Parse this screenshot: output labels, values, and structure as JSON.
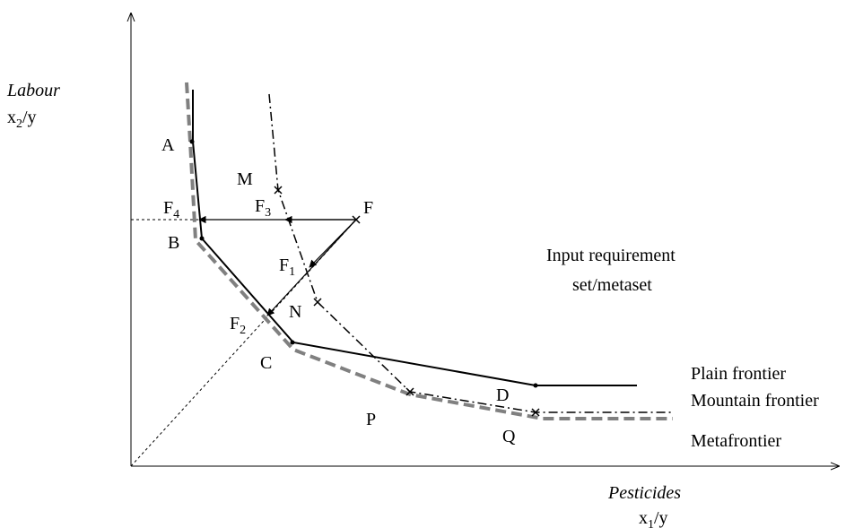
{
  "axes": {
    "y_label": "Labour",
    "y_unit": {
      "base": "x",
      "sub": "2",
      "rest": "/y"
    },
    "x_label": "Pesticides",
    "x_unit": {
      "base": "x",
      "sub": "1",
      "rest": "/y"
    }
  },
  "points": {
    "A": "A",
    "B": "B",
    "C": "C",
    "D": "D",
    "M": "M",
    "N": "N",
    "P": "P",
    "Q": "Q",
    "F": "F",
    "F1": {
      "base": "F",
      "sub": "1"
    },
    "F2": {
      "base": "F",
      "sub": "2"
    },
    "F3": {
      "base": "F",
      "sub": "3"
    },
    "F4": {
      "base": "F",
      "sub": "4"
    }
  },
  "region": [
    "Input requirement",
    "set/metaset"
  ],
  "legend": {
    "plain": "Plain frontier",
    "mountain": "Mountain frontier",
    "meta": "Metafrontier"
  }
}
